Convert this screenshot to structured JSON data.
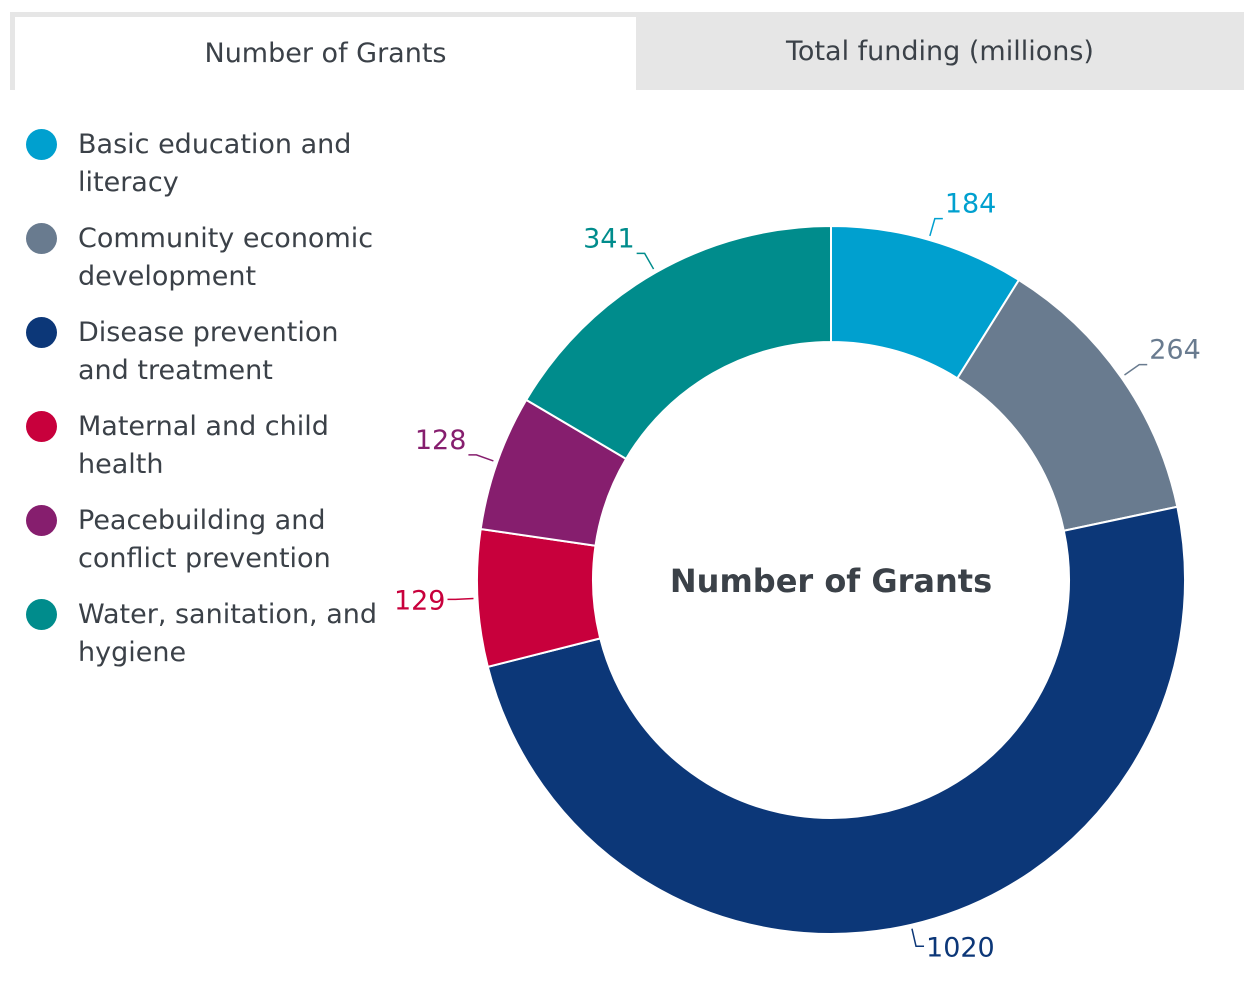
{
  "tabs": [
    {
      "label": "Number of Grants",
      "active": true
    },
    {
      "label": "Total funding (millions)",
      "active": false
    }
  ],
  "colors": {
    "basic_education": "#00a0cf",
    "community_economic": "#697b8f",
    "disease_prevention": "#0c3778",
    "maternal_child": "#c8003c",
    "peacebuilding": "#861e6e",
    "water_sanitation": "#008c8c"
  },
  "chart_data": {
    "type": "pie",
    "donut": true,
    "center_label": "Number of Grants",
    "legend_position": "left",
    "categories": [
      "Basic education and literacy",
      "Community economic development",
      "Disease prevention and treatment",
      "Maternal and child health",
      "Peacebuilding and conflict prevention",
      "Water, sanitation, and hygiene"
    ],
    "values": [
      184,
      264,
      1020,
      129,
      128,
      341
    ],
    "value_labels": [
      "184",
      "264",
      "1020",
      "129",
      "128",
      "341"
    ]
  }
}
